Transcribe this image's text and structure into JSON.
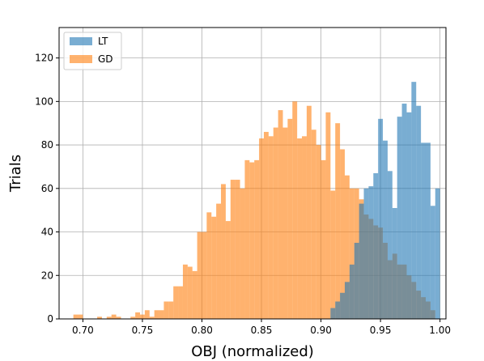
{
  "chart_data": {
    "type": "bar",
    "xlabel": "OBJ (normalized)",
    "ylabel": "Trials",
    "xlim": [
      0.68,
      1.005
    ],
    "ylim": [
      0,
      134
    ],
    "xticks": [
      "0.70",
      "0.75",
      "0.80",
      "0.85",
      "0.90",
      "0.95",
      "1.00"
    ],
    "yticks": [
      "0",
      "20",
      "40",
      "60",
      "80",
      "100",
      "120"
    ],
    "grid": true,
    "legend": "top-left",
    "colors": {
      "LT": "#1f77b4",
      "GD": "#ff7f0e"
    },
    "bin_width": 0.004,
    "series": [
      {
        "name": "LT",
        "x": [
          0.908,
          0.912,
          0.916,
          0.92,
          0.924,
          0.928,
          0.932,
          0.936,
          0.94,
          0.944,
          0.948,
          0.952,
          0.956,
          0.96,
          0.964,
          0.968,
          0.972,
          0.976,
          0.98,
          0.984,
          0.988,
          0.992,
          0.996
        ],
        "values": [
          5,
          8,
          12,
          17,
          25,
          35,
          53,
          60,
          61,
          67,
          92,
          82,
          68,
          51,
          93,
          99,
          95,
          109,
          98,
          81,
          81,
          52,
          60
        ]
      },
      {
        "name": "GD",
        "x": [
          0.688,
          0.692,
          0.696,
          0.7,
          0.704,
          0.708,
          0.712,
          0.716,
          0.72,
          0.724,
          0.728,
          0.732,
          0.736,
          0.74,
          0.744,
          0.748,
          0.752,
          0.756,
          0.76,
          0.764,
          0.768,
          0.772,
          0.776,
          0.78,
          0.784,
          0.788,
          0.792,
          0.796,
          0.8,
          0.804,
          0.808,
          0.812,
          0.816,
          0.82,
          0.824,
          0.828,
          0.832,
          0.836,
          0.84,
          0.844,
          0.848,
          0.852,
          0.856,
          0.86,
          0.864,
          0.868,
          0.872,
          0.876,
          0.88,
          0.884,
          0.888,
          0.892,
          0.896,
          0.9,
          0.904,
          0.908,
          0.912,
          0.916,
          0.92,
          0.924,
          0.928,
          0.932,
          0.936,
          0.94,
          0.944,
          0.948,
          0.952,
          0.956,
          0.96,
          0.964,
          0.968,
          0.972,
          0.976,
          0.98,
          0.984,
          0.988,
          0.992,
          0.996
        ],
        "values": [
          0,
          2,
          2,
          0,
          0,
          0,
          1,
          0,
          1,
          2,
          1,
          0,
          0,
          1,
          3,
          2,
          4,
          1,
          4,
          4,
          8,
          8,
          15,
          15,
          25,
          24,
          22,
          40,
          40,
          49,
          47,
          53,
          62,
          45,
          64,
          64,
          60,
          73,
          72,
          73,
          83,
          86,
          84,
          88,
          96,
          88,
          92,
          100,
          83,
          84,
          98,
          87,
          80,
          73,
          95,
          59,
          90,
          78,
          66,
          60,
          60,
          55,
          48,
          46,
          43,
          42,
          35,
          27,
          30,
          25,
          25,
          20,
          17,
          13,
          10,
          8,
          4,
          0
        ]
      }
    ]
  }
}
